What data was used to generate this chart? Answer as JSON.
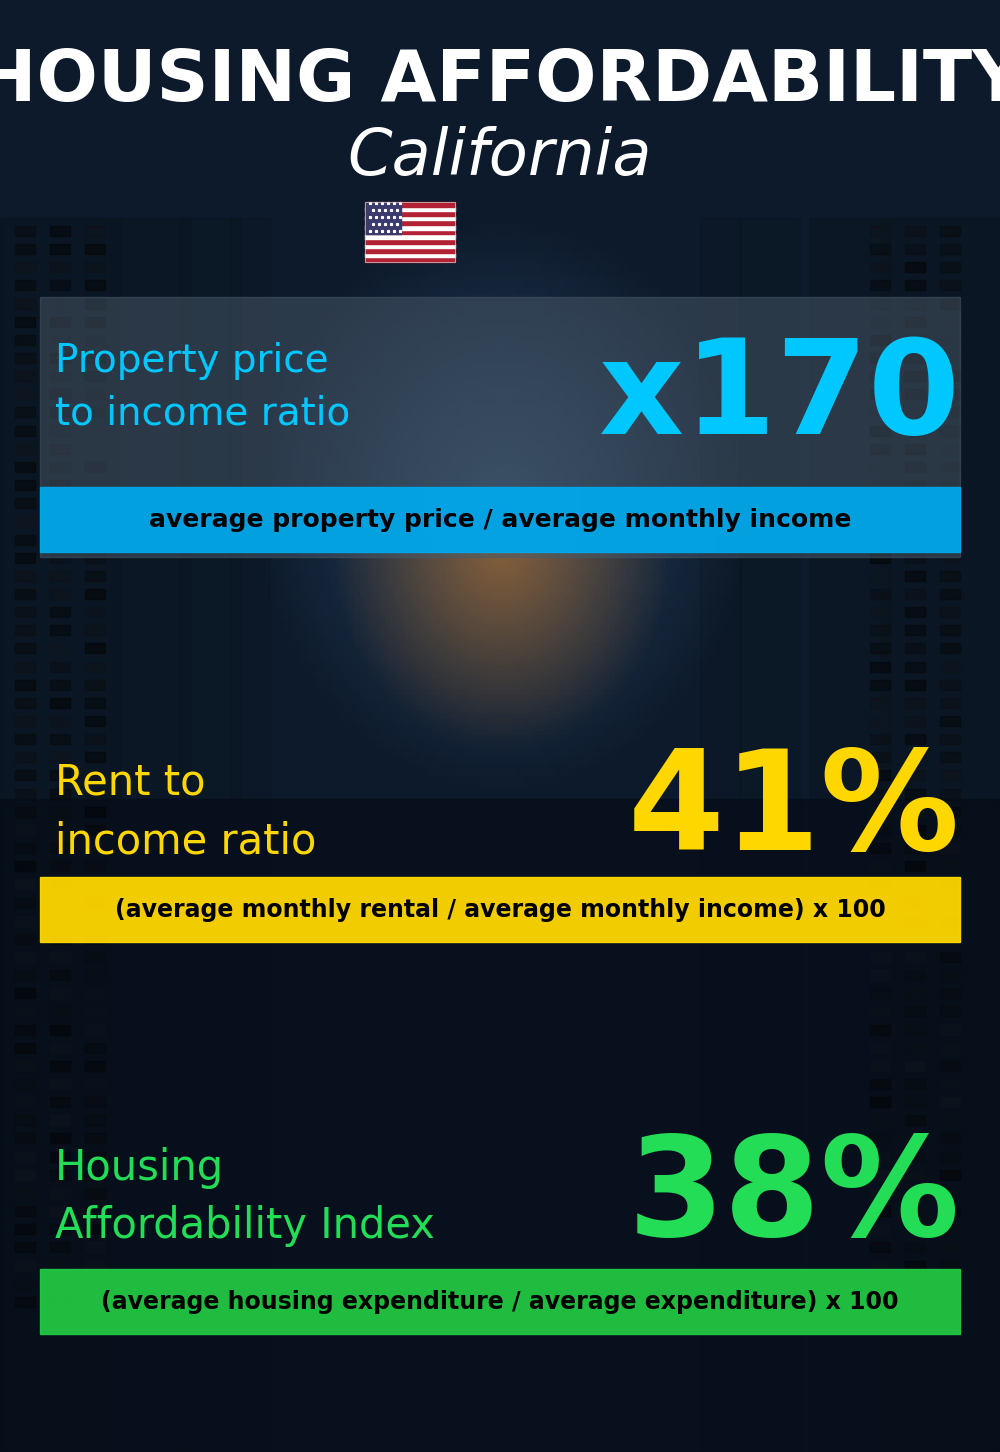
{
  "title_line1": "HOUSING AFFORDABILITY",
  "title_line2": "California",
  "section1_label": "Property price\nto income ratio",
  "section1_value": "x170",
  "section1_formula": "average property price / average monthly income",
  "section1_label_color": "#00c8ff",
  "section1_value_color": "#00c8ff",
  "section1_banner_color": "#00aaee",
  "section2_label": "Rent to\nincome ratio",
  "section2_value": "41%",
  "section2_formula": "(average monthly rental / average monthly income) x 100",
  "section2_label_color": "#ffd700",
  "section2_value_color": "#ffd700",
  "section2_banner_color": "#ffd700",
  "section3_label": "Housing\nAffordability Index",
  "section3_value": "38%",
  "section3_formula": "(average housing expenditure / average expenditure) x 100",
  "section3_label_color": "#22dd55",
  "section3_value_color": "#22dd55",
  "section3_banner_color": "#22cc44",
  "bg_color": "#0a1525",
  "title_color": "#ffffff",
  "formula_text_color": "#000000",
  "figsize": [
    10.0,
    14.52
  ],
  "dpi": 100
}
